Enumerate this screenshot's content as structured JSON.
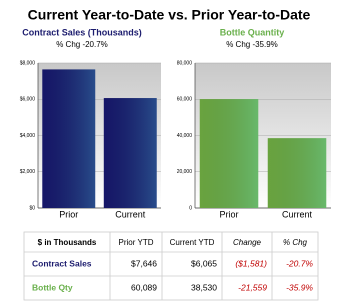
{
  "title": "Current Year-to-Date vs. Prior Year-to-Date",
  "chart_data": [
    {
      "type": "bar",
      "title": "Contract Sales (Thousands)",
      "subtitle": "% Chg -20.7%",
      "title_color": "#1c1c6e",
      "categories": [
        "Prior",
        "Current"
      ],
      "values": [
        7646,
        6065
      ],
      "color": "#1a1a7a",
      "ylim": [
        0,
        8000
      ],
      "yticks": [
        {
          "value": 0,
          "label": "$0"
        },
        {
          "value": 2000,
          "label": "$2,000"
        },
        {
          "value": 4000,
          "label": "$4,000"
        },
        {
          "value": 6000,
          "label": "$6,000"
        },
        {
          "value": 8000,
          "label": "$8,000"
        }
      ],
      "grid": true
    },
    {
      "type": "bar",
      "title": "Bottle Quantity",
      "subtitle": "% Chg -35.9%",
      "title_color": "#6ab04c",
      "categories": [
        "Prior",
        "Current"
      ],
      "values": [
        60089,
        38530
      ],
      "color": "#7cc04a",
      "ylim": [
        0,
        80000
      ],
      "yticks": [
        0,
        {
          "value": 20000,
          "label": "20,000"
        },
        {
          "value": 40000,
          "label": "40,000"
        },
        {
          "value": 60000,
          "label": "60,000"
        },
        {
          "value": 80000,
          "label": "80,000"
        }
      ],
      "grid": true
    }
  ],
  "table": {
    "header": [
      "$ in Thousands",
      "Prior YTD",
      "Current YTD",
      "Change",
      "% Chg"
    ],
    "rows": [
      [
        "Contract Sales",
        "$7,646",
        "$6,065",
        "($1,581)",
        "-20.7%"
      ],
      [
        "Bottle Qty",
        "60,089",
        "38,530",
        "-21,559",
        "-35.9%"
      ]
    ]
  }
}
